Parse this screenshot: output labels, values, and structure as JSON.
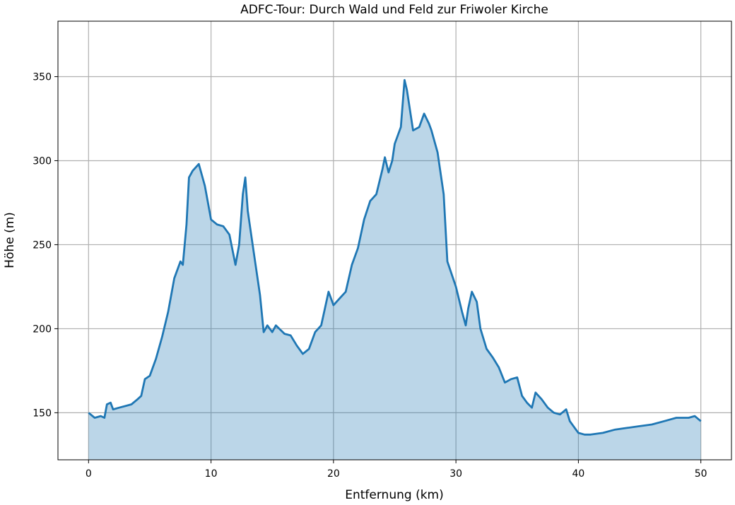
{
  "chart_data": {
    "type": "area",
    "title": "ADFC-Tour: Durch Wald und Feld zur Friwoler Kirche",
    "xlabel": "Entfernung (km)",
    "ylabel": "Höhe (m)",
    "color": "#1f77b4",
    "grid": true,
    "xlim": [
      -2.5,
      52.5
    ],
    "ylim": [
      122,
      383
    ],
    "xticks": [
      0,
      10,
      20,
      30,
      40,
      50
    ],
    "yticks": [
      150,
      200,
      250,
      300,
      350
    ],
    "x": [
      0,
      0.5,
      1,
      1.3,
      1.5,
      1.8,
      2,
      2.5,
      3,
      3.5,
      4,
      4.3,
      4.6,
      5,
      5.5,
      6,
      6.5,
      7,
      7.5,
      7.7,
      8,
      8.2,
      8.5,
      9,
      9.5,
      10,
      10.5,
      11,
      11.5,
      12,
      12.3,
      12.6,
      12.8,
      13,
      13.5,
      14,
      14.3,
      14.6,
      15,
      15.3,
      16,
      16.5,
      17,
      17.5,
      18,
      18.5,
      19,
      19.3,
      19.6,
      20,
      20.5,
      21,
      21.5,
      22,
      22.5,
      23,
      23.5,
      24,
      24.2,
      24.5,
      24.8,
      25,
      25.5,
      25.8,
      26,
      26.5,
      27,
      27.4,
      27.8,
      28,
      28.5,
      29,
      29.3,
      30,
      30.5,
      30.8,
      31,
      31.3,
      31.7,
      32,
      32.5,
      33,
      33.5,
      34,
      34.5,
      35,
      35.4,
      35.8,
      36.2,
      36.5,
      37,
      37.5,
      38,
      38.5,
      39,
      39.3,
      39.8,
      40,
      40.5,
      41,
      42,
      43,
      44,
      45,
      46,
      47,
      48,
      49,
      49.5,
      50
    ],
    "values": [
      150,
      147,
      148,
      147,
      155,
      156,
      152,
      153,
      154,
      155,
      158,
      160,
      170,
      172,
      182,
      195,
      210,
      230,
      240,
      238,
      262,
      290,
      294,
      298,
      285,
      265,
      262,
      261,
      256,
      238,
      250,
      280,
      290,
      270,
      245,
      220,
      198,
      202,
      198,
      202,
      197,
      196,
      190,
      185,
      188,
      198,
      202,
      212,
      222,
      214,
      218,
      222,
      238,
      248,
      265,
      276,
      280,
      295,
      302,
      293,
      300,
      310,
      320,
      348,
      342,
      318,
      320,
      328,
      322,
      318,
      305,
      280,
      240,
      225,
      210,
      202,
      212,
      222,
      216,
      200,
      188,
      183,
      177,
      168,
      170,
      171,
      160,
      156,
      153,
      162,
      158,
      153,
      150,
      149,
      152,
      145,
      140,
      138,
      137,
      137,
      138,
      140,
      141,
      142,
      143,
      145,
      147,
      147,
      148,
      145
    ]
  }
}
